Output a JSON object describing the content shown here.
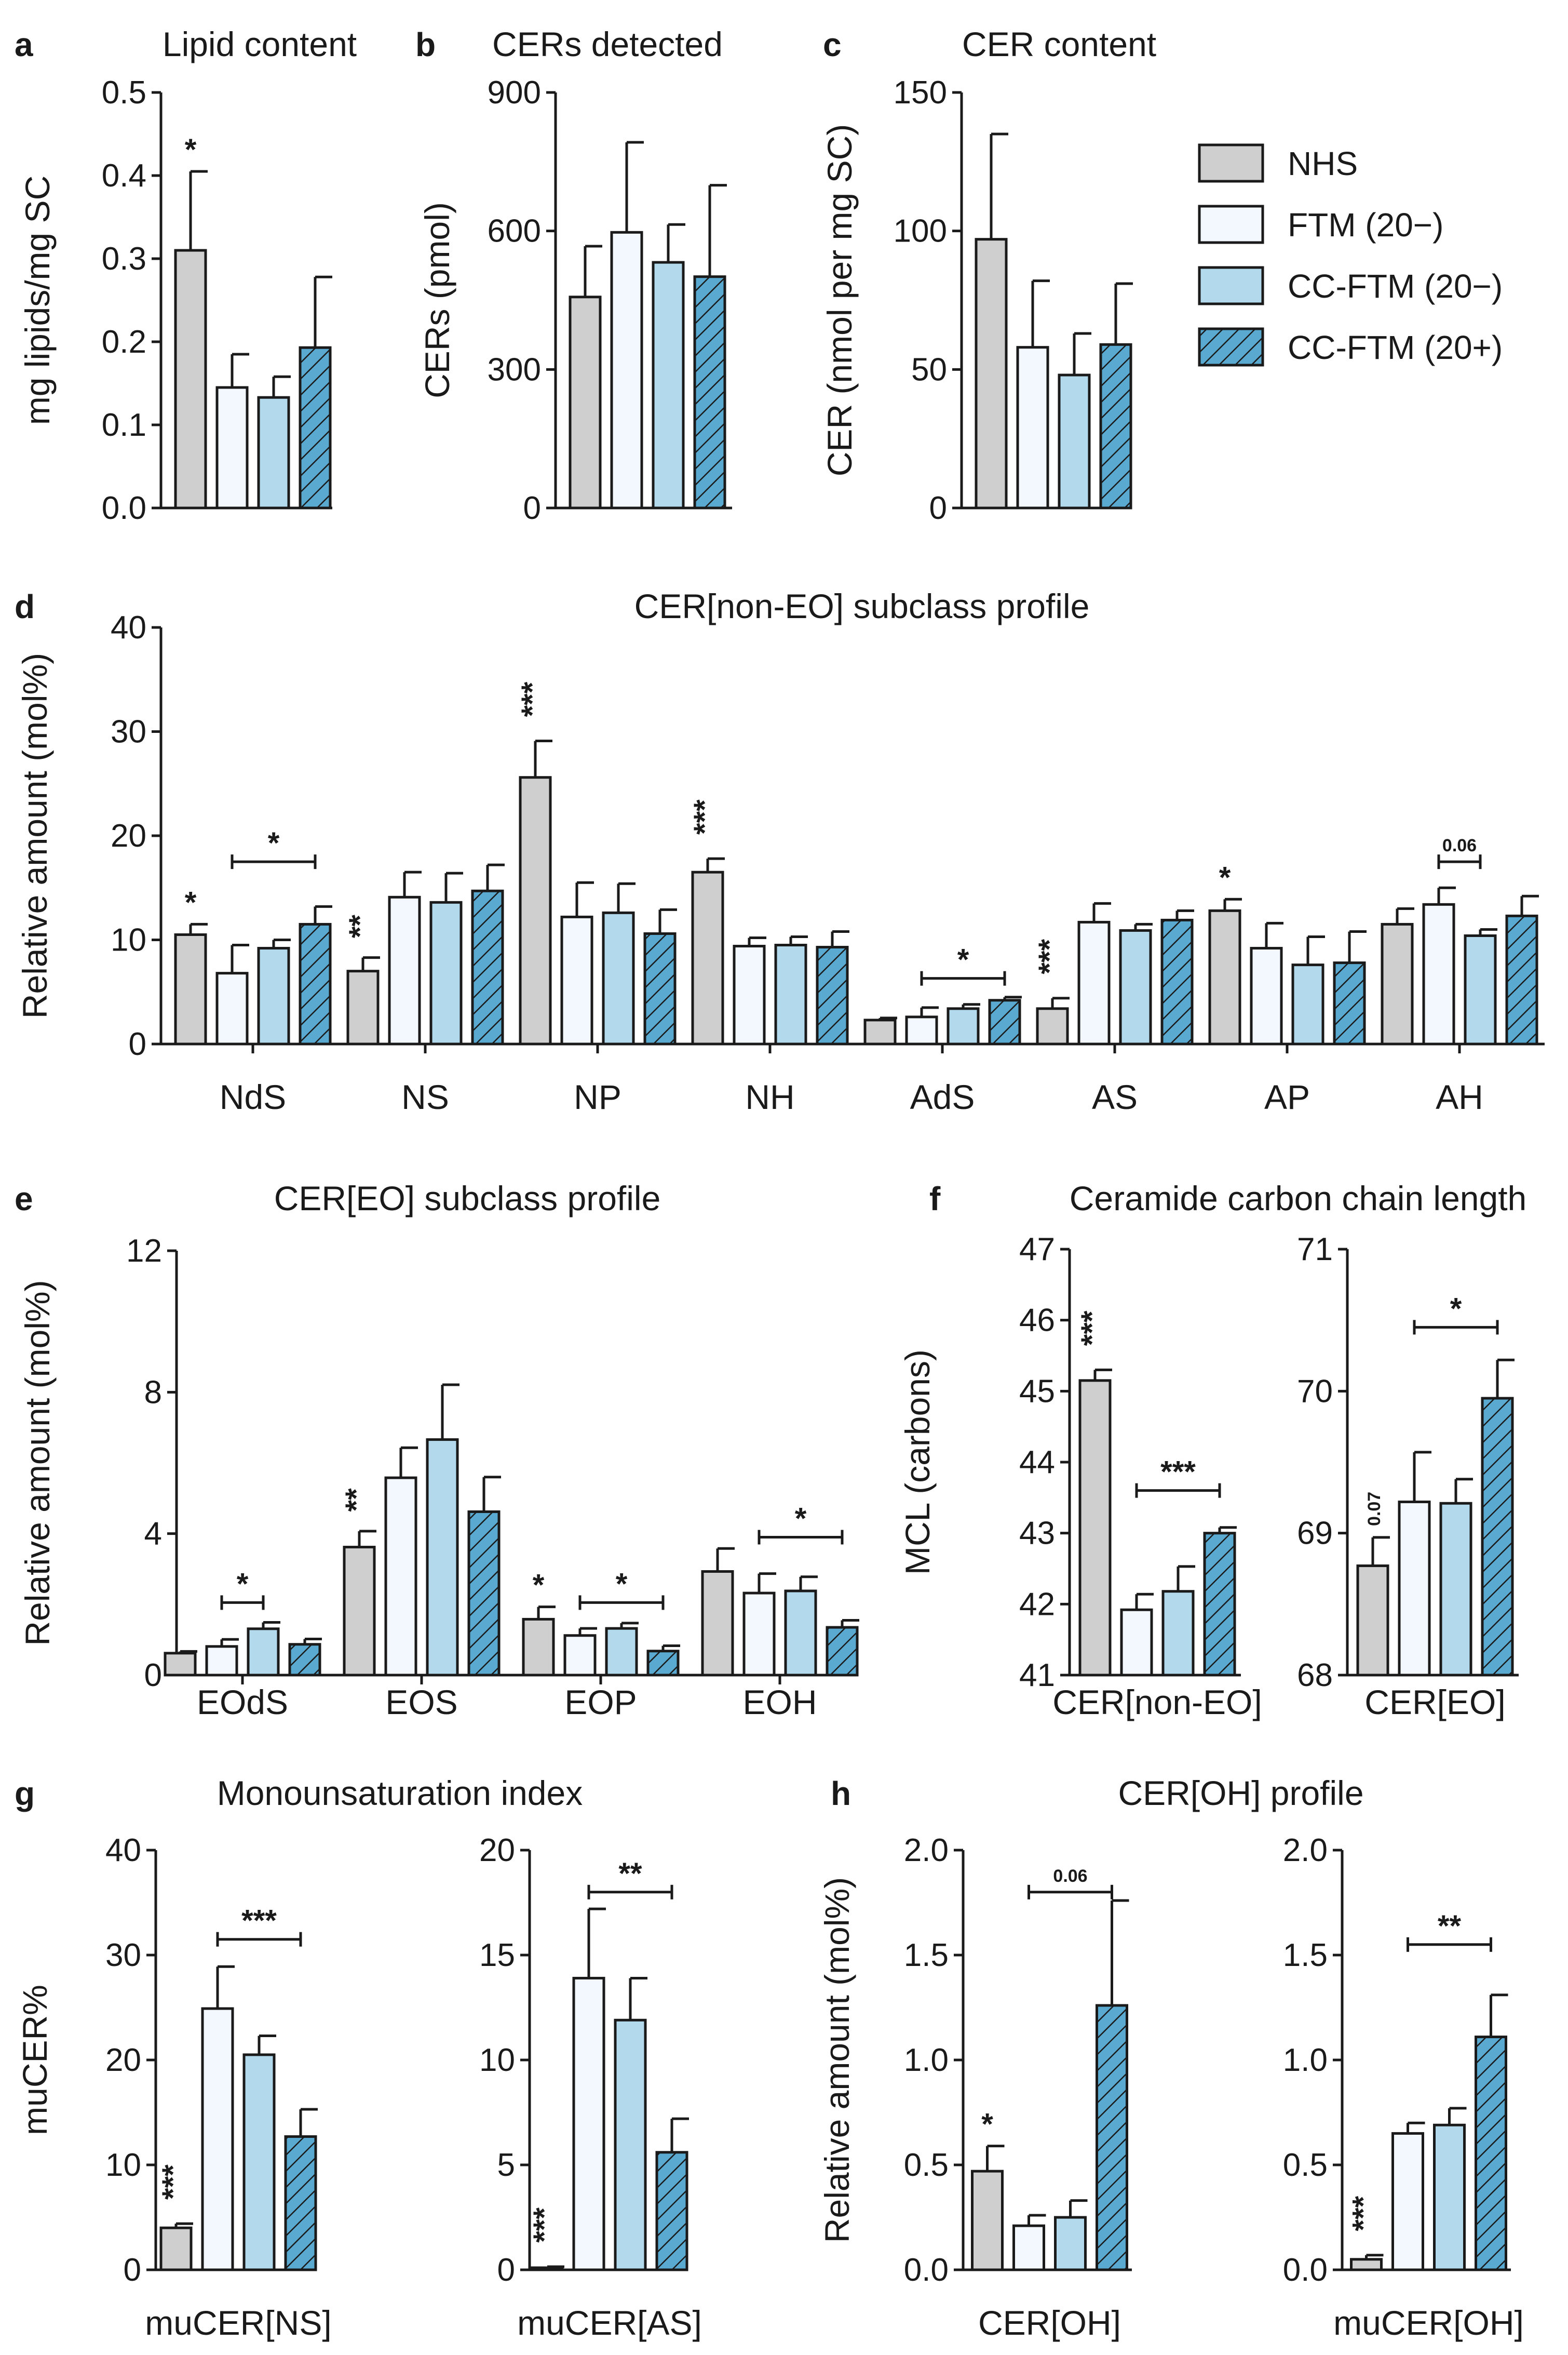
{
  "colors": {
    "NHS": "#cfcfcf",
    "FTM (20−)": "#f2f8fd",
    "CC-FTM (20−)": "#b3d9ec",
    "CC-FTM (20+)": "#5aa9d0",
    "stroke": "#1a1a1a"
  },
  "legend": [
    {
      "label": "NHS",
      "hatch": false
    },
    {
      "label": "FTM (20−)",
      "hatch": false
    },
    {
      "label": "CC-FTM (20−)",
      "hatch": false
    },
    {
      "label": "CC-FTM (20+)",
      "hatch": true
    }
  ],
  "chart_data": [
    {
      "panel": "a",
      "type": "bar",
      "title": "Lipid content",
      "ylabel": "mg lipids/mg SC",
      "ylim": [
        0,
        0.5
      ],
      "yticks": [
        "0.0",
        "0.1",
        "0.2",
        "0.3",
        "0.4",
        "0.5"
      ],
      "categories": [
        ""
      ],
      "series": [
        {
          "name": "NHS",
          "values": [
            0.31
          ],
          "errors": [
            0.095
          ]
        },
        {
          "name": "FTM (20−)",
          "values": [
            0.145
          ],
          "errors": [
            0.04
          ]
        },
        {
          "name": "CC-FTM (20−)",
          "values": [
            0.133
          ],
          "errors": [
            0.025
          ]
        },
        {
          "name": "CC-FTM (20+)",
          "values": [
            0.193
          ],
          "errors": [
            0.085
          ]
        }
      ],
      "annotations": [
        {
          "text": "*",
          "bar": [
            0,
            0
          ]
        }
      ]
    },
    {
      "panel": "b",
      "type": "bar",
      "title": "CERs detected",
      "ylabel": "CERs (pmol)",
      "ylim": [
        0,
        900
      ],
      "yticks": [
        "0",
        "300",
        "600",
        "900"
      ],
      "categories": [
        ""
      ],
      "series": [
        {
          "name": "NHS",
          "values": [
            457
          ],
          "errors": [
            110
          ]
        },
        {
          "name": "FTM (20−)",
          "values": [
            597
          ],
          "errors": [
            195
          ]
        },
        {
          "name": "CC-FTM (20−)",
          "values": [
            532
          ],
          "errors": [
            82
          ]
        },
        {
          "name": "CC-FTM (20+)",
          "values": [
            501
          ],
          "errors": [
            198
          ]
        }
      ],
      "annotations": []
    },
    {
      "panel": "c",
      "type": "bar",
      "title": "CER content",
      "ylabel": "CER (nmol per mg SC)",
      "ylim": [
        0,
        150
      ],
      "yticks": [
        "0",
        "50",
        "100",
        "150"
      ],
      "categories": [
        ""
      ],
      "series": [
        {
          "name": "NHS",
          "values": [
            97
          ],
          "errors": [
            38
          ]
        },
        {
          "name": "FTM (20−)",
          "values": [
            58
          ],
          "errors": [
            24
          ]
        },
        {
          "name": "CC-FTM (20−)",
          "values": [
            48
          ],
          "errors": [
            15
          ]
        },
        {
          "name": "CC-FTM (20+)",
          "values": [
            59
          ],
          "errors": [
            22
          ]
        }
      ],
      "annotations": []
    },
    {
      "panel": "d",
      "type": "bar",
      "title": "CER[non-EO] subclass profile",
      "ylabel": "Relative amount (mol%)",
      "ylim": [
        0,
        40
      ],
      "yticks": [
        "0",
        "10",
        "20",
        "30",
        "40"
      ],
      "categories": [
        "NdS",
        "NS",
        "NP",
        "NH",
        "AdS",
        "AS",
        "AP",
        "AH"
      ],
      "series": [
        {
          "name": "NHS",
          "values": [
            10.5,
            7,
            25.6,
            16.5,
            2.3,
            3.4,
            12.8,
            11.5
          ],
          "errors": [
            1.0,
            1.3,
            3.5,
            1.3,
            0.2,
            1.0,
            1.1,
            1.5
          ]
        },
        {
          "name": "FTM (20−)",
          "values": [
            6.8,
            14.1,
            12.2,
            9.4,
            2.6,
            11.7,
            9.2,
            13.4
          ],
          "errors": [
            2.7,
            2.4,
            3.3,
            0.8,
            0.9,
            1.8,
            2.4,
            1.6
          ]
        },
        {
          "name": "CC-FTM (20−)",
          "values": [
            9.2,
            13.6,
            12.6,
            9.5,
            3.4,
            10.9,
            7.6,
            10.4
          ],
          "errors": [
            0.8,
            2.8,
            2.8,
            0.8,
            0.4,
            0.6,
            2.7,
            0.6
          ]
        },
        {
          "name": "CC-FTM (20+)",
          "values": [
            11.5,
            14.7,
            10.6,
            9.3,
            4.2,
            11.9,
            7.8,
            12.3
          ],
          "errors": [
            1.7,
            2.5,
            2.3,
            1.5,
            0.3,
            0.9,
            3.0,
            1.9
          ]
        }
      ],
      "annotations": [
        {
          "text": "*",
          "bar": [
            0,
            0
          ]
        },
        {
          "text": "*",
          "bracket": [
            [
              0,
              1
            ],
            [
              0,
              3
            ]
          ],
          "y": 17.5
        },
        {
          "text": "**",
          "bar": [
            1,
            0
          ],
          "vertical": true
        },
        {
          "text": "***",
          "bar": [
            2,
            0
          ],
          "vertical": true
        },
        {
          "text": "***",
          "bar": [
            3,
            0
          ],
          "vertical": true
        },
        {
          "text": "*",
          "bracket": [
            [
              4,
              1
            ],
            [
              4,
              3
            ]
          ],
          "y": 6.3
        },
        {
          "text": "***",
          "bar": [
            5,
            0
          ],
          "vertical": true
        },
        {
          "text": "*",
          "bar": [
            6,
            0
          ]
        },
        {
          "text": "0.06",
          "bracket": [
            [
              7,
              1
            ],
            [
              7,
              2
            ]
          ],
          "y": 17.5,
          "small": true
        }
      ]
    },
    {
      "panel": "e",
      "type": "bar",
      "title": "CER[EO] subclass profile",
      "ylabel": "Relative amount (mol%)",
      "ylim": [
        0,
        12
      ],
      "yticks": [
        "0",
        "4",
        "8",
        "12"
      ],
      "categories": [
        "EOdS",
        "EOS",
        "EOP",
        "EOH"
      ],
      "series": [
        {
          "name": "NHS",
          "values": [
            0.62,
            3.62,
            1.58,
            2.93
          ],
          "errors": [
            0.05,
            0.45,
            0.35,
            0.65
          ]
        },
        {
          "name": "FTM (20−)",
          "values": [
            0.81,
            5.58,
            1.12,
            2.32
          ],
          "errors": [
            0.2,
            0.85,
            0.2,
            0.55
          ]
        },
        {
          "name": "CC-FTM (20−)",
          "values": [
            1.31,
            6.66,
            1.32,
            2.38
          ],
          "errors": [
            0.18,
            1.55,
            0.15,
            0.4
          ]
        },
        {
          "name": "CC-FTM (20+)",
          "values": [
            0.87,
            4.62,
            0.68,
            1.35
          ],
          "errors": [
            0.15,
            0.98,
            0.15,
            0.2
          ]
        }
      ],
      "annotations": [
        {
          "text": "*",
          "bracket": [
            [
              0,
              1
            ],
            [
              0,
              2
            ]
          ],
          "y": 2.05
        },
        {
          "text": "**",
          "bar": [
            1,
            0
          ],
          "vertical": true
        },
        {
          "text": "*",
          "bar": [
            2,
            0
          ]
        },
        {
          "text": "*",
          "bracket": [
            [
              2,
              1
            ],
            [
              2,
              3
            ]
          ],
          "y": 2.05
        },
        {
          "text": "*",
          "bracket": [
            [
              3,
              1
            ],
            [
              3,
              3
            ]
          ],
          "y": 3.9
        }
      ]
    },
    {
      "panel": "f1",
      "type": "bar",
      "title": "Ceramide carbon chain length",
      "ylabel": "MCL (carbons)",
      "ylim": [
        41,
        47
      ],
      "yticks": [
        "41",
        "42",
        "43",
        "44",
        "45",
        "46",
        "47"
      ],
      "categories": [
        "CER[non-EO]"
      ],
      "series": [
        {
          "name": "NHS",
          "values": [
            45.15
          ],
          "errors": [
            0.15
          ]
        },
        {
          "name": "FTM (20−)",
          "values": [
            41.92
          ],
          "errors": [
            0.22
          ]
        },
        {
          "name": "CC-FTM (20−)",
          "values": [
            42.18
          ],
          "errors": [
            0.35
          ]
        },
        {
          "name": "CC-FTM (20+)",
          "values": [
            43.0
          ],
          "errors": [
            0.08
          ]
        }
      ],
      "annotations": [
        {
          "text": "***",
          "bar": [
            0,
            0
          ],
          "vertical": true
        },
        {
          "text": "***",
          "bracket": [
            [
              0,
              1
            ],
            [
              0,
              3
            ]
          ],
          "y": 43.6
        }
      ]
    },
    {
      "panel": "f2",
      "type": "bar",
      "title": "",
      "ylabel": "",
      "ylim": [
        68,
        71
      ],
      "yticks": [
        "68",
        "69",
        "70",
        "71"
      ],
      "categories": [
        "CER[EO]"
      ],
      "series": [
        {
          "name": "NHS",
          "values": [
            68.77
          ],
          "errors": [
            0.2
          ]
        },
        {
          "name": "FTM (20−)",
          "values": [
            69.22
          ],
          "errors": [
            0.35
          ]
        },
        {
          "name": "CC-FTM (20−)",
          "values": [
            69.21
          ],
          "errors": [
            0.17
          ]
        },
        {
          "name": "CC-FTM (20+)",
          "values": [
            69.95
          ],
          "errors": [
            0.27
          ]
        }
      ],
      "annotations": [
        {
          "text": "0.07",
          "bar": [
            0,
            0
          ],
          "vertical": true,
          "small": true
        },
        {
          "text": "*",
          "bracket": [
            [
              0,
              1
            ],
            [
              0,
              3
            ]
          ],
          "y": 70.45
        }
      ]
    },
    {
      "panel": "g1",
      "type": "bar",
      "title": "Monounsaturation index",
      "ylabel": "muCER%",
      "ylim": [
        0,
        40
      ],
      "yticks": [
        "0",
        "10",
        "20",
        "30",
        "40"
      ],
      "categories": [
        "muCER[NS]"
      ],
      "series": [
        {
          "name": "NHS",
          "values": [
            4.0
          ],
          "errors": [
            0.4
          ]
        },
        {
          "name": "FTM (20−)",
          "values": [
            24.9
          ],
          "errors": [
            4.0
          ]
        },
        {
          "name": "CC-FTM (20−)",
          "values": [
            20.5
          ],
          "errors": [
            1.8
          ]
        },
        {
          "name": "CC-FTM (20+)",
          "values": [
            12.7
          ],
          "errors": [
            2.6
          ]
        }
      ],
      "annotations": [
        {
          "text": "***",
          "bar": [
            0,
            0
          ],
          "vertical": true
        },
        {
          "text": "***",
          "bracket": [
            [
              0,
              1
            ],
            [
              0,
              3
            ]
          ],
          "y": 31.5
        }
      ]
    },
    {
      "panel": "g2",
      "type": "bar",
      "title": "",
      "ylabel": "",
      "ylim": [
        0,
        20
      ],
      "yticks": [
        "0",
        "5",
        "10",
        "15",
        "20"
      ],
      "categories": [
        "muCER[AS]"
      ],
      "series": [
        {
          "name": "NHS",
          "values": [
            0.1
          ],
          "errors": [
            0.05
          ]
        },
        {
          "name": "FTM (20−)",
          "values": [
            13.9
          ],
          "errors": [
            3.3
          ]
        },
        {
          "name": "CC-FTM (20−)",
          "values": [
            11.9
          ],
          "errors": [
            2.0
          ]
        },
        {
          "name": "CC-FTM (20+)",
          "values": [
            5.6
          ],
          "errors": [
            1.6
          ]
        }
      ],
      "annotations": [
        {
          "text": "***",
          "bar": [
            0,
            0
          ],
          "vertical": true
        },
        {
          "text": "**",
          "bracket": [
            [
              0,
              1
            ],
            [
              0,
              3
            ]
          ],
          "y": 18.0
        }
      ]
    },
    {
      "panel": "h1",
      "type": "bar",
      "title": "CER[OH] profile",
      "ylabel": "Relative amount (mol%)",
      "ylim": [
        0,
        2.0
      ],
      "yticks": [
        "0.0",
        "0.5",
        "1.0",
        "1.5",
        "2.0"
      ],
      "categories": [
        "CER[OH]"
      ],
      "series": [
        {
          "name": "NHS",
          "values": [
            0.47
          ],
          "errors": [
            0.12
          ]
        },
        {
          "name": "FTM (20−)",
          "values": [
            0.21
          ],
          "errors": [
            0.05
          ]
        },
        {
          "name": "CC-FTM (20−)",
          "values": [
            0.25
          ],
          "errors": [
            0.08
          ]
        },
        {
          "name": "CC-FTM (20+)",
          "values": [
            1.26
          ],
          "errors": [
            0.5
          ]
        }
      ],
      "annotations": [
        {
          "text": "*",
          "bar": [
            0,
            0
          ]
        },
        {
          "text": "0.06",
          "bracket": [
            [
              0,
              1
            ],
            [
              0,
              3
            ]
          ],
          "y": 1.8,
          "small": true
        }
      ]
    },
    {
      "panel": "h2",
      "type": "bar",
      "title": "",
      "ylabel": "",
      "ylim": [
        0,
        2.0
      ],
      "yticks": [
        "0.0",
        "0.5",
        "1.0",
        "1.5",
        "2.0"
      ],
      "categories": [
        "muCER[OH]"
      ],
      "series": [
        {
          "name": "NHS",
          "values": [
            0.05
          ],
          "errors": [
            0.02
          ]
        },
        {
          "name": "FTM (20−)",
          "values": [
            0.65
          ],
          "errors": [
            0.05
          ]
        },
        {
          "name": "CC-FTM (20−)",
          "values": [
            0.69
          ],
          "errors": [
            0.08
          ]
        },
        {
          "name": "CC-FTM (20+)",
          "values": [
            1.11
          ],
          "errors": [
            0.2
          ]
        }
      ],
      "annotations": [
        {
          "text": "***",
          "bar": [
            0,
            0
          ],
          "vertical": true
        },
        {
          "text": "**",
          "bracket": [
            [
              0,
              1
            ],
            [
              0,
              3
            ]
          ],
          "y": 1.55
        }
      ]
    }
  ]
}
